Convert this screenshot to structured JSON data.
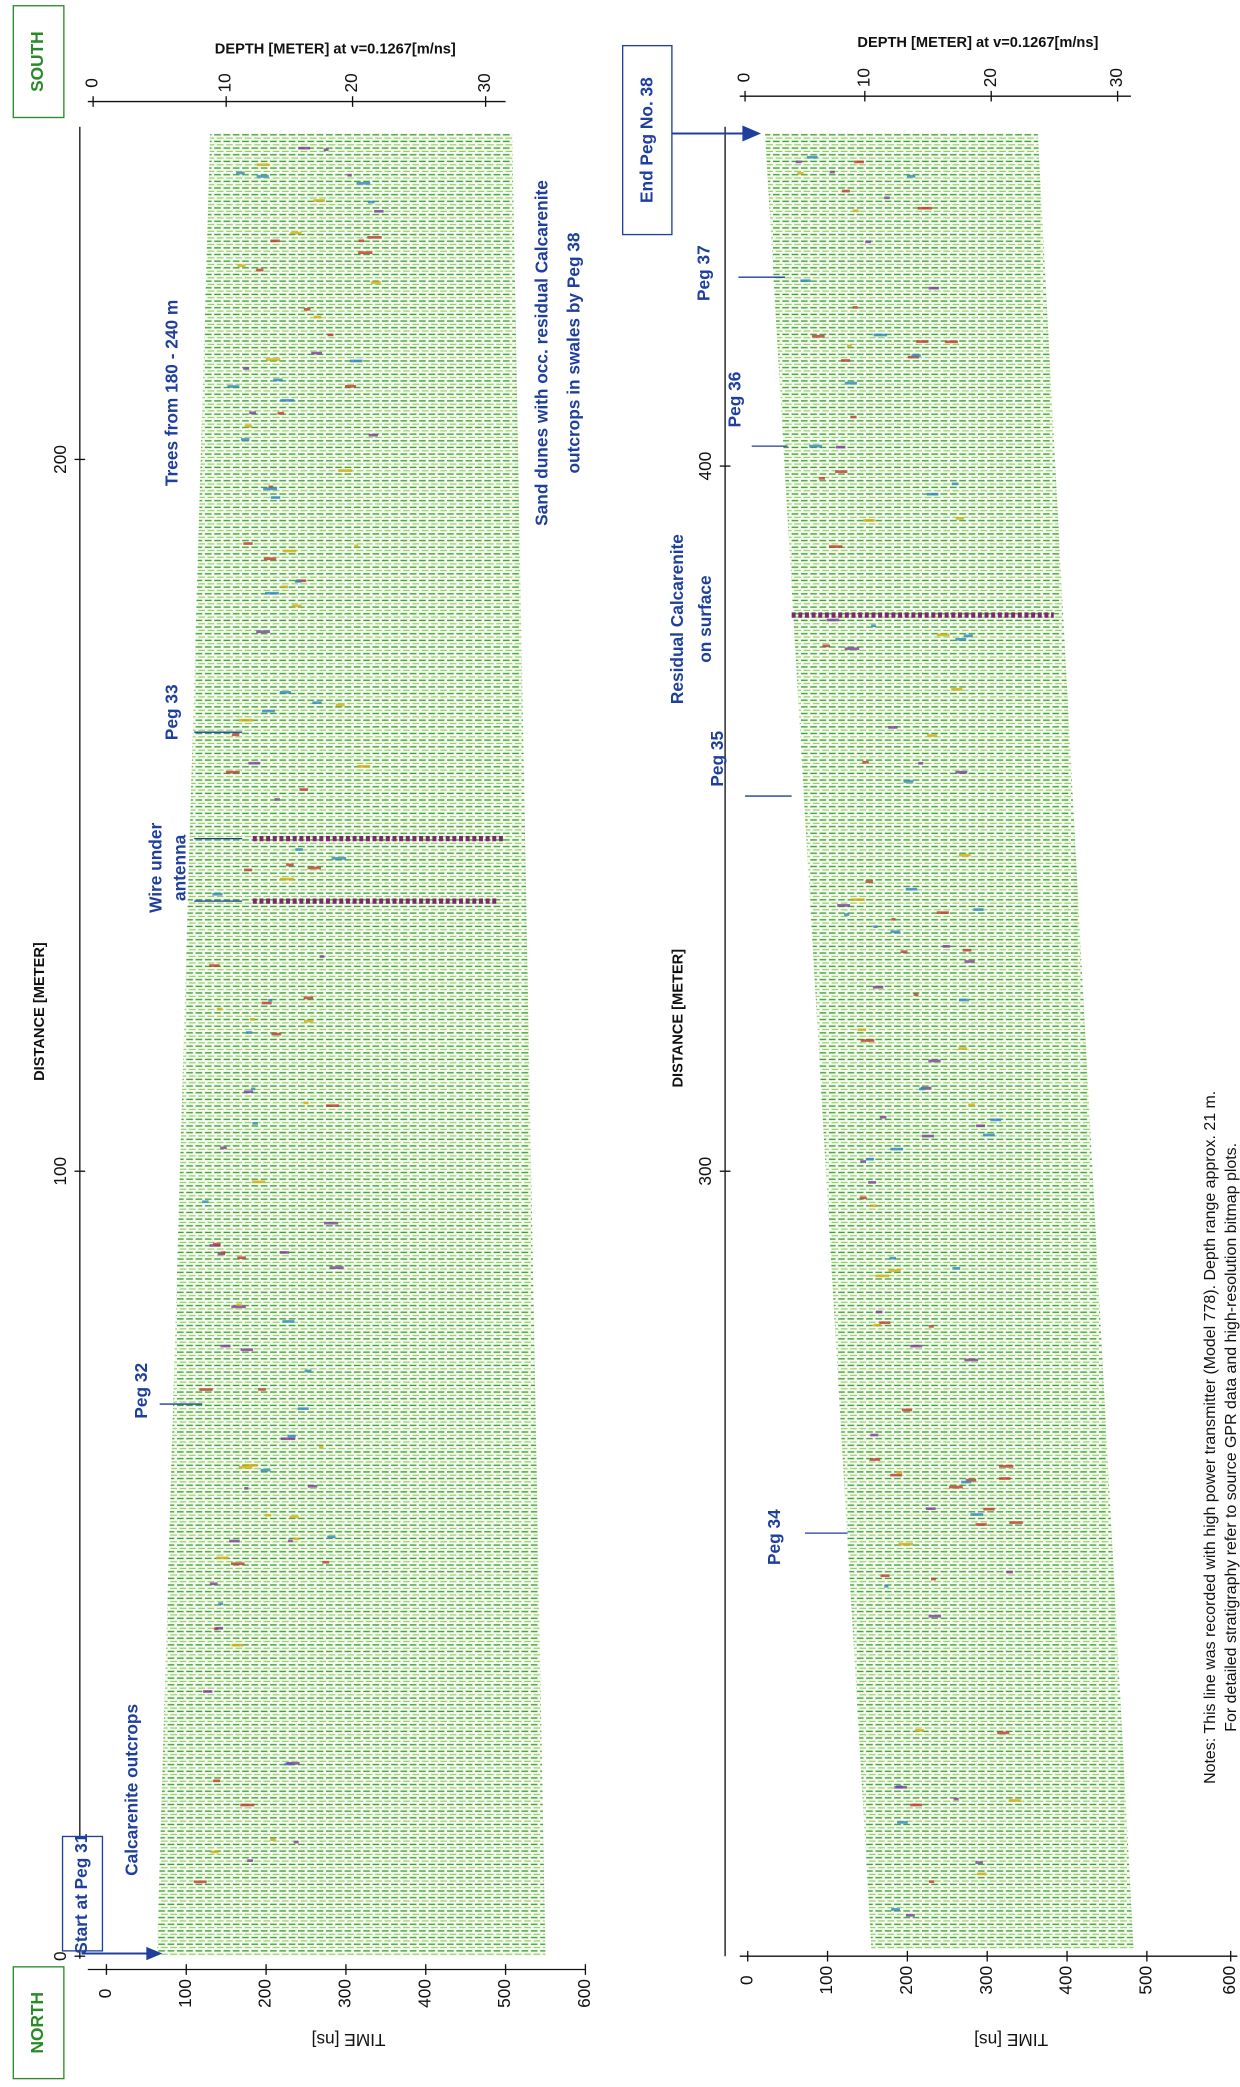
{
  "orientation": {
    "north": "NORTH",
    "south": "SOUTH"
  },
  "panels": [
    {
      "depth_title": "DEPTH [METER] at v=0.1267[m/ns]",
      "depth_ticks": [
        "0",
        "10",
        "20",
        "30"
      ],
      "distance_title": "DISTANCE [METER]",
      "distance_ticks": [
        "0",
        "100",
        "200"
      ],
      "time_title": "TIME [ns]",
      "time_ticks": [
        "0",
        "100",
        "200",
        "300",
        "400",
        "500",
        "600"
      ],
      "annotations": [
        "Start at Peg 31",
        "Calcarenite outcrops",
        "Peg 32",
        "Wire under",
        "antenna",
        "Peg 33",
        "Trees from 180 - 240 m",
        "Sand dunes with occ. residual Calcarenite",
        "outcrops in swales by Peg 38"
      ]
    },
    {
      "depth_title": "DEPTH [METER] at v=0.1267[m/ns]",
      "depth_ticks": [
        "0",
        "10",
        "20",
        "30"
      ],
      "distance_title": "DISTANCE [METER]",
      "distance_ticks": [
        "300",
        "400"
      ],
      "time_title": "TIME [ns]",
      "time_ticks": [
        "0",
        "100",
        "200",
        "300",
        "400",
        "500",
        "600"
      ],
      "annotations": [
        "End Peg No. 38",
        "Peg 37",
        "Peg 36",
        "Residual Calcarenite",
        "on surface",
        "Peg 35",
        "Peg 34"
      ]
    }
  ],
  "notes": [
    "Notes: This line was recorded with high power transmitter (Model 778). Depth range approx. 21 m.",
    "For detailed stratigraphy refer to source GPR data and high-resolution bitmap plots."
  ]
}
